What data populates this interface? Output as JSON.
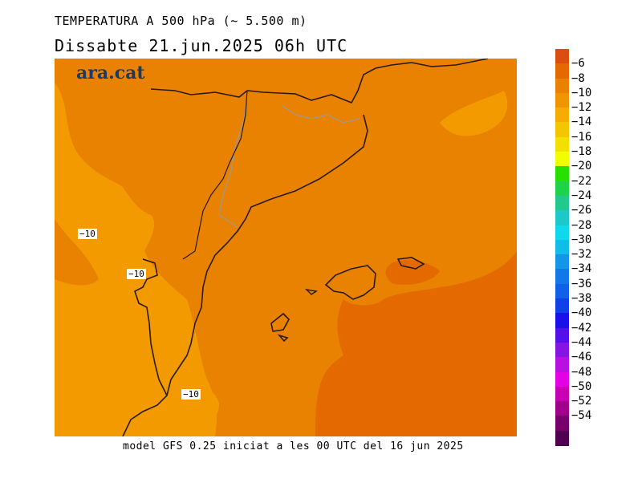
{
  "header": {
    "title": "TEMPERATURA A 500 hPa (~ 5.500 m)",
    "subtitle": "Dissabte   21.jun.2025 06h UTC"
  },
  "footer": {
    "text": "model GFS 0.25 iniciat a les 00 UTC del 16 jun 2025"
  },
  "logo": {
    "text": "ara.cat",
    "color": "#1a3a6b"
  },
  "map": {
    "colors": {
      "field_dominant": "#e88200",
      "field_warm": "#e46a00",
      "field_cool": "#f29a00",
      "coastline": "#2a1a0a",
      "border": "#999999"
    },
    "contour_labels": [
      {
        "text": "−10"
      },
      {
        "text": "−10"
      },
      {
        "text": "−10"
      }
    ]
  },
  "colorbar": {
    "labels": [
      "−6",
      "−8",
      "−10",
      "−12",
      "−14",
      "−16",
      "−18",
      "−20",
      "−22",
      "−24",
      "−26",
      "−28",
      "−30",
      "−32",
      "−34",
      "−36",
      "−38",
      "−40",
      "−42",
      "−44",
      "−46",
      "−48",
      "−50",
      "−52",
      "−54"
    ],
    "colors": [
      "#dc4e10",
      "#e46a00",
      "#e88200",
      "#f09400",
      "#f6ac00",
      "#f2c600",
      "#f2e000",
      "#f0ff00",
      "#28e000",
      "#1ed24a",
      "#22c88c",
      "#1cc8c8",
      "#10d8ec",
      "#10bce8",
      "#1496e6",
      "#1278ea",
      "#1060e8",
      "#1040e8",
      "#1a10ea",
      "#5410e8",
      "#8614e2",
      "#b810e2",
      "#e400e4",
      "#c800b4",
      "#a0008c",
      "#78006a",
      "#500050"
    ]
  }
}
